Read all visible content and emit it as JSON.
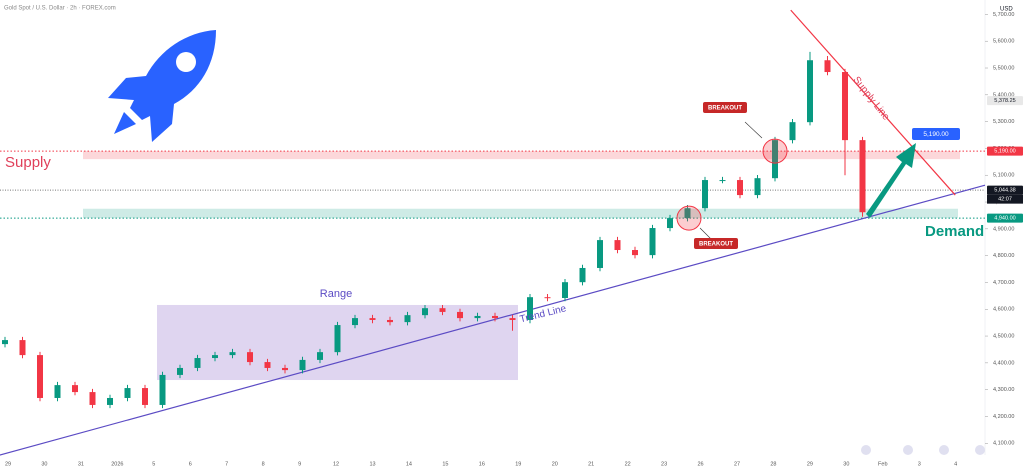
{
  "chart_data": {
    "type": "candlestick",
    "title": "Gold Spot / U.S. Dollar · 2h · FOREX.com",
    "currency": "USD",
    "x_labels": [
      "29",
      "30",
      "31",
      "2026",
      "5",
      "6",
      "7",
      "8",
      "9",
      "12",
      "13",
      "14",
      "15",
      "16",
      "19",
      "20",
      "21",
      "22",
      "23",
      "26",
      "27",
      "28",
      "29",
      "30",
      "Feb",
      "3",
      "4"
    ],
    "open": [
      4470,
      4485,
      4429,
      4269,
      4317,
      4291,
      4243,
      4269,
      4306,
      4243,
      4355,
      4381,
      4418,
      4429,
      4440,
      4403,
      4381,
      4373,
      4411,
      4440,
      4541,
      4567,
      4560,
      4552,
      4578,
      4604,
      4590,
      4567,
      4575,
      4567,
      4560,
      4645,
      4642,
      4701,
      4754,
      4858,
      4821,
      4802,
      4903,
      4940,
      4977,
      5082,
      5082,
      5026,
      5089,
      5231,
      5298,
      5529,
      5485,
      5231
    ],
    "high": [
      4497,
      4497,
      4441,
      4329,
      4329,
      4303,
      4281,
      4318,
      4318,
      4367,
      4393,
      4430,
      4441,
      4452,
      4452,
      4415,
      4393,
      4423,
      4452,
      4553,
      4579,
      4579,
      4572,
      4590,
      4616,
      4616,
      4602,
      4587,
      4587,
      4579,
      4657,
      4657,
      4713,
      4766,
      4870,
      4870,
      4833,
      4915,
      4952,
      4989,
      5094,
      5094,
      5094,
      5101,
      5243,
      5310,
      5560,
      5545,
      5497,
      5243
    ],
    "low": [
      4458,
      4417,
      4257,
      4257,
      4279,
      4231,
      4231,
      4257,
      4231,
      4231,
      4343,
      4369,
      4406,
      4417,
      4391,
      4369,
      4361,
      4361,
      4399,
      4428,
      4529,
      4548,
      4540,
      4540,
      4566,
      4578,
      4555,
      4555,
      4555,
      4520,
      4548,
      4630,
      4630,
      4689,
      4742,
      4809,
      4790,
      4790,
      4891,
      4928,
      4965,
      5070,
      5014,
      5014,
      5077,
      5219,
      5286,
      5473,
      5100,
      4945
    ],
    "close": [
      4485,
      4429,
      4269,
      4317,
      4291,
      4243,
      4269,
      4306,
      4243,
      4355,
      4381,
      4418,
      4429,
      4440,
      4403,
      4381,
      4373,
      4411,
      4440,
      4541,
      4567,
      4560,
      4552,
      4578,
      4604,
      4590,
      4567,
      4575,
      4567,
      4560,
      4645,
      4642,
      4701,
      4754,
      4858,
      4821,
      4802,
      4903,
      4940,
      4977,
      5082,
      5082,
      5026,
      5089,
      5231,
      5298,
      5529,
      5485,
      5231,
      4962
    ],
    "up_color": "#089981",
    "down_color": "#f23645",
    "ylim": [
      4060,
      5750
    ],
    "yticks": [
      {
        "value": 4100,
        "label": "4,100.00"
      },
      {
        "value": 4200,
        "label": "4,200.00"
      },
      {
        "value": 4300,
        "label": "4,300.00"
      },
      {
        "value": 4400,
        "label": "4,400.00"
      },
      {
        "value": 4500,
        "label": "4,500.00"
      },
      {
        "value": 4600,
        "label": "4,600.00"
      },
      {
        "value": 4700,
        "label": "4,700.00"
      },
      {
        "value": 4800,
        "label": "4,800.00"
      },
      {
        "value": 4900,
        "label": "4,900.00"
      },
      {
        "value": 5000,
        "label": "5,000.00"
      },
      {
        "value": 5100,
        "label": "5,100.00"
      },
      {
        "value": 5200,
        "label": "5,200.00"
      },
      {
        "value": 5300,
        "label": "5,300.00"
      },
      {
        "value": 5400,
        "label": "5,400.00"
      },
      {
        "value": 5500,
        "label": "5,500.00"
      },
      {
        "value": 5600,
        "label": "5,600.00"
      },
      {
        "value": 5700,
        "label": "5,700.00"
      }
    ],
    "last_high": {
      "value": 5378.25,
      "label": "5,378.25"
    },
    "current_price": {
      "value": 5044.38,
      "label": "5,044.38"
    },
    "countdown": "42:07",
    "supply": {
      "label": "Supply",
      "price": {
        "value": 5190,
        "label": "5,190.00"
      },
      "zone": [
        5160,
        5190
      ],
      "color": "#f23645"
    },
    "demand": {
      "label": "Demand",
      "price": {
        "value": 4940,
        "label": "4,940.00"
      },
      "zone": [
        4940,
        4975
      ],
      "color": "#089981"
    },
    "range": {
      "label": "Range",
      "zone": [
        4336,
        4616
      ]
    },
    "trend_line": {
      "label": "Trend Line",
      "x": [
        -0.3,
        56
      ],
      "y": [
        4056,
        5063
      ],
      "color": "#5b4bc4"
    },
    "supply_line": {
      "label": "Supply Line",
      "x": [
        44.9,
        54.3
      ],
      "y": [
        5716,
        5026
      ],
      "color": "#f23645"
    },
    "breakouts": [
      "BREAKOUT",
      "BREAKOUT"
    ],
    "target": {
      "value": 5190,
      "label": "5,190.00"
    }
  }
}
